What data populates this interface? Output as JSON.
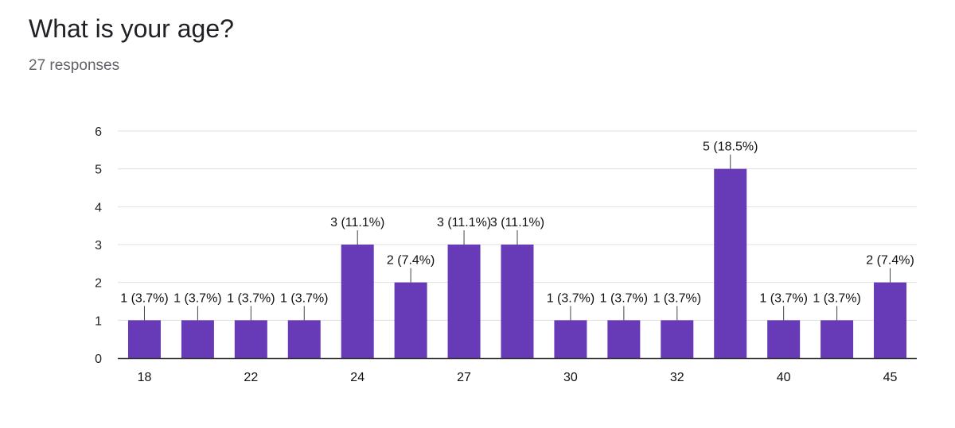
{
  "question": {
    "title": "What is your age?",
    "responses": "27 responses"
  },
  "chart_data": {
    "type": "bar",
    "categories": [
      "18",
      "",
      "22",
      "",
      "24",
      "",
      "27",
      "",
      "30",
      "",
      "32",
      "",
      "40",
      "",
      "45"
    ],
    "values": [
      1,
      1,
      1,
      1,
      3,
      2,
      3,
      3,
      1,
      1,
      1,
      5,
      1,
      1,
      2
    ],
    "data_labels": [
      "1 (3.7%)",
      "1 (3.7%)",
      "1 (3.7%)",
      "1 (3.7%)",
      "3 (11.1%)",
      "2 (7.4%)",
      "3 (11.1%)",
      "3 (11.1%)",
      "1 (3.7%)",
      "1 (3.7%)",
      "1 (3.7%)",
      "5 (18.5%)",
      "1 (3.7%)",
      "1 (3.7%)",
      "2 (7.4%)"
    ],
    "y_ticks": [
      0,
      1,
      2,
      3,
      4,
      5,
      6
    ],
    "ylim": [
      0,
      6
    ],
    "grid": true,
    "bar_color": "#673ab7"
  }
}
